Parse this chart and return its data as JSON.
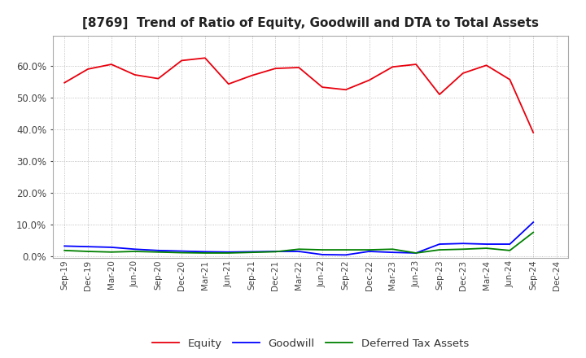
{
  "title": "[8769]  Trend of Ratio of Equity, Goodwill and DTA to Total Assets",
  "x_labels": [
    "Sep-19",
    "Dec-19",
    "Mar-20",
    "Jun-20",
    "Sep-20",
    "Dec-20",
    "Mar-21",
    "Jun-21",
    "Sep-21",
    "Dec-21",
    "Mar-22",
    "Jun-22",
    "Sep-22",
    "Dec-22",
    "Mar-23",
    "Jun-23",
    "Sep-23",
    "Dec-23",
    "Mar-24",
    "Jun-24",
    "Sep-24",
    "Dec-24"
  ],
  "equity": [
    0.547,
    0.59,
    0.605,
    0.572,
    0.56,
    0.617,
    0.625,
    0.543,
    0.57,
    0.592,
    0.595,
    0.533,
    0.525,
    0.555,
    0.597,
    0.605,
    0.51,
    0.577,
    0.602,
    0.557,
    0.39,
    null
  ],
  "goodwill": [
    0.032,
    0.03,
    0.028,
    0.022,
    0.018,
    0.016,
    0.014,
    0.013,
    0.014,
    0.015,
    0.015,
    0.005,
    0.004,
    0.015,
    0.012,
    0.01,
    0.038,
    0.04,
    0.038,
    0.038,
    0.107,
    null
  ],
  "dta": [
    0.018,
    0.015,
    0.013,
    0.015,
    0.013,
    0.011,
    0.01,
    0.01,
    0.012,
    0.014,
    0.022,
    0.02,
    0.02,
    0.02,
    0.022,
    0.01,
    0.02,
    0.022,
    0.025,
    0.018,
    0.075,
    null
  ],
  "equity_color": "#e8000d",
  "goodwill_color": "#0000ff",
  "dta_color": "#008000",
  "background_color": "#ffffff",
  "plot_bg_color": "#ffffff",
  "grid_color": "#b0b0b0",
  "title_fontsize": 11,
  "ylim": [
    -0.005,
    0.695
  ],
  "yticks": [
    0.0,
    0.1,
    0.2,
    0.3,
    0.4,
    0.5,
    0.6
  ],
  "legend_labels": [
    "Equity",
    "Goodwill",
    "Deferred Tax Assets"
  ]
}
